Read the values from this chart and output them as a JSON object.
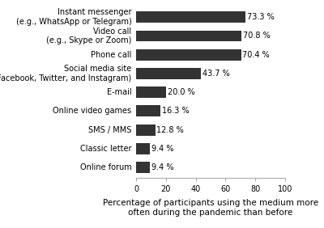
{
  "categories": [
    "Online forum",
    "Classic letter",
    "SMS / MMS",
    "Online video games",
    "E-mail",
    "Social media site\n(e.g., Facebook, Twitter, and Instagram)",
    "Phone call",
    "Video call\n(e.g., Skype or Zoom)",
    "Instant messenger\n(e.g., WhatsApp or Telegram)"
  ],
  "values": [
    9.4,
    9.4,
    12.8,
    16.3,
    20.0,
    43.7,
    70.4,
    70.8,
    73.3
  ],
  "labels": [
    "9.4 %",
    "9.4 %",
    "12.8 %",
    "16.3 %",
    "20.0 %",
    "43.7 %",
    "70.4 %",
    "70.8 %",
    "73.3 %"
  ],
  "bar_color": "#333333",
  "background_color": "#ffffff",
  "xlabel": "Percentage of participants using the medium more\noften during the pandemic than before",
  "xlim": [
    0,
    100
  ],
  "xticks": [
    0,
    20,
    40,
    60,
    80,
    100
  ],
  "bar_height": 0.6,
  "label_fontsize": 7.0,
  "tick_fontsize": 7.0,
  "xlabel_fontsize": 7.5
}
